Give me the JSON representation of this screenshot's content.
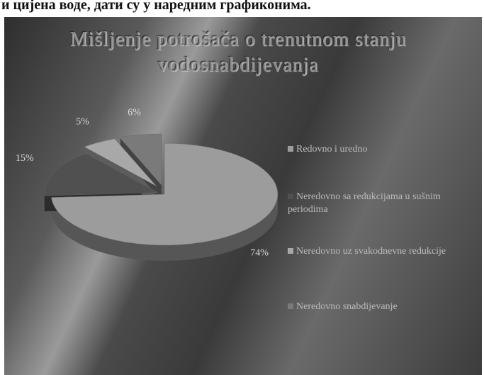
{
  "heading": "и цијена воде, дати су у наредним графиконима.",
  "chart_data": {
    "type": "pie",
    "title": "Mišljenje potrošača o trenutnom stanju vodosnabdijevanja",
    "categories": [
      "Redovno i uredno",
      "Neredovno sa redukcijama u sušnim periodima",
      "Neredovno uz svakodnevne redukcije",
      "Neredovno snabdijevanje"
    ],
    "values": [
      74,
      15,
      5,
      6
    ],
    "value_labels": [
      "74%",
      "15%",
      "5%",
      "6%"
    ],
    "colors": [
      "#9c9c9c",
      "#505050",
      "#a8a8a8",
      "#7a7a7a"
    ],
    "legend": "right"
  }
}
